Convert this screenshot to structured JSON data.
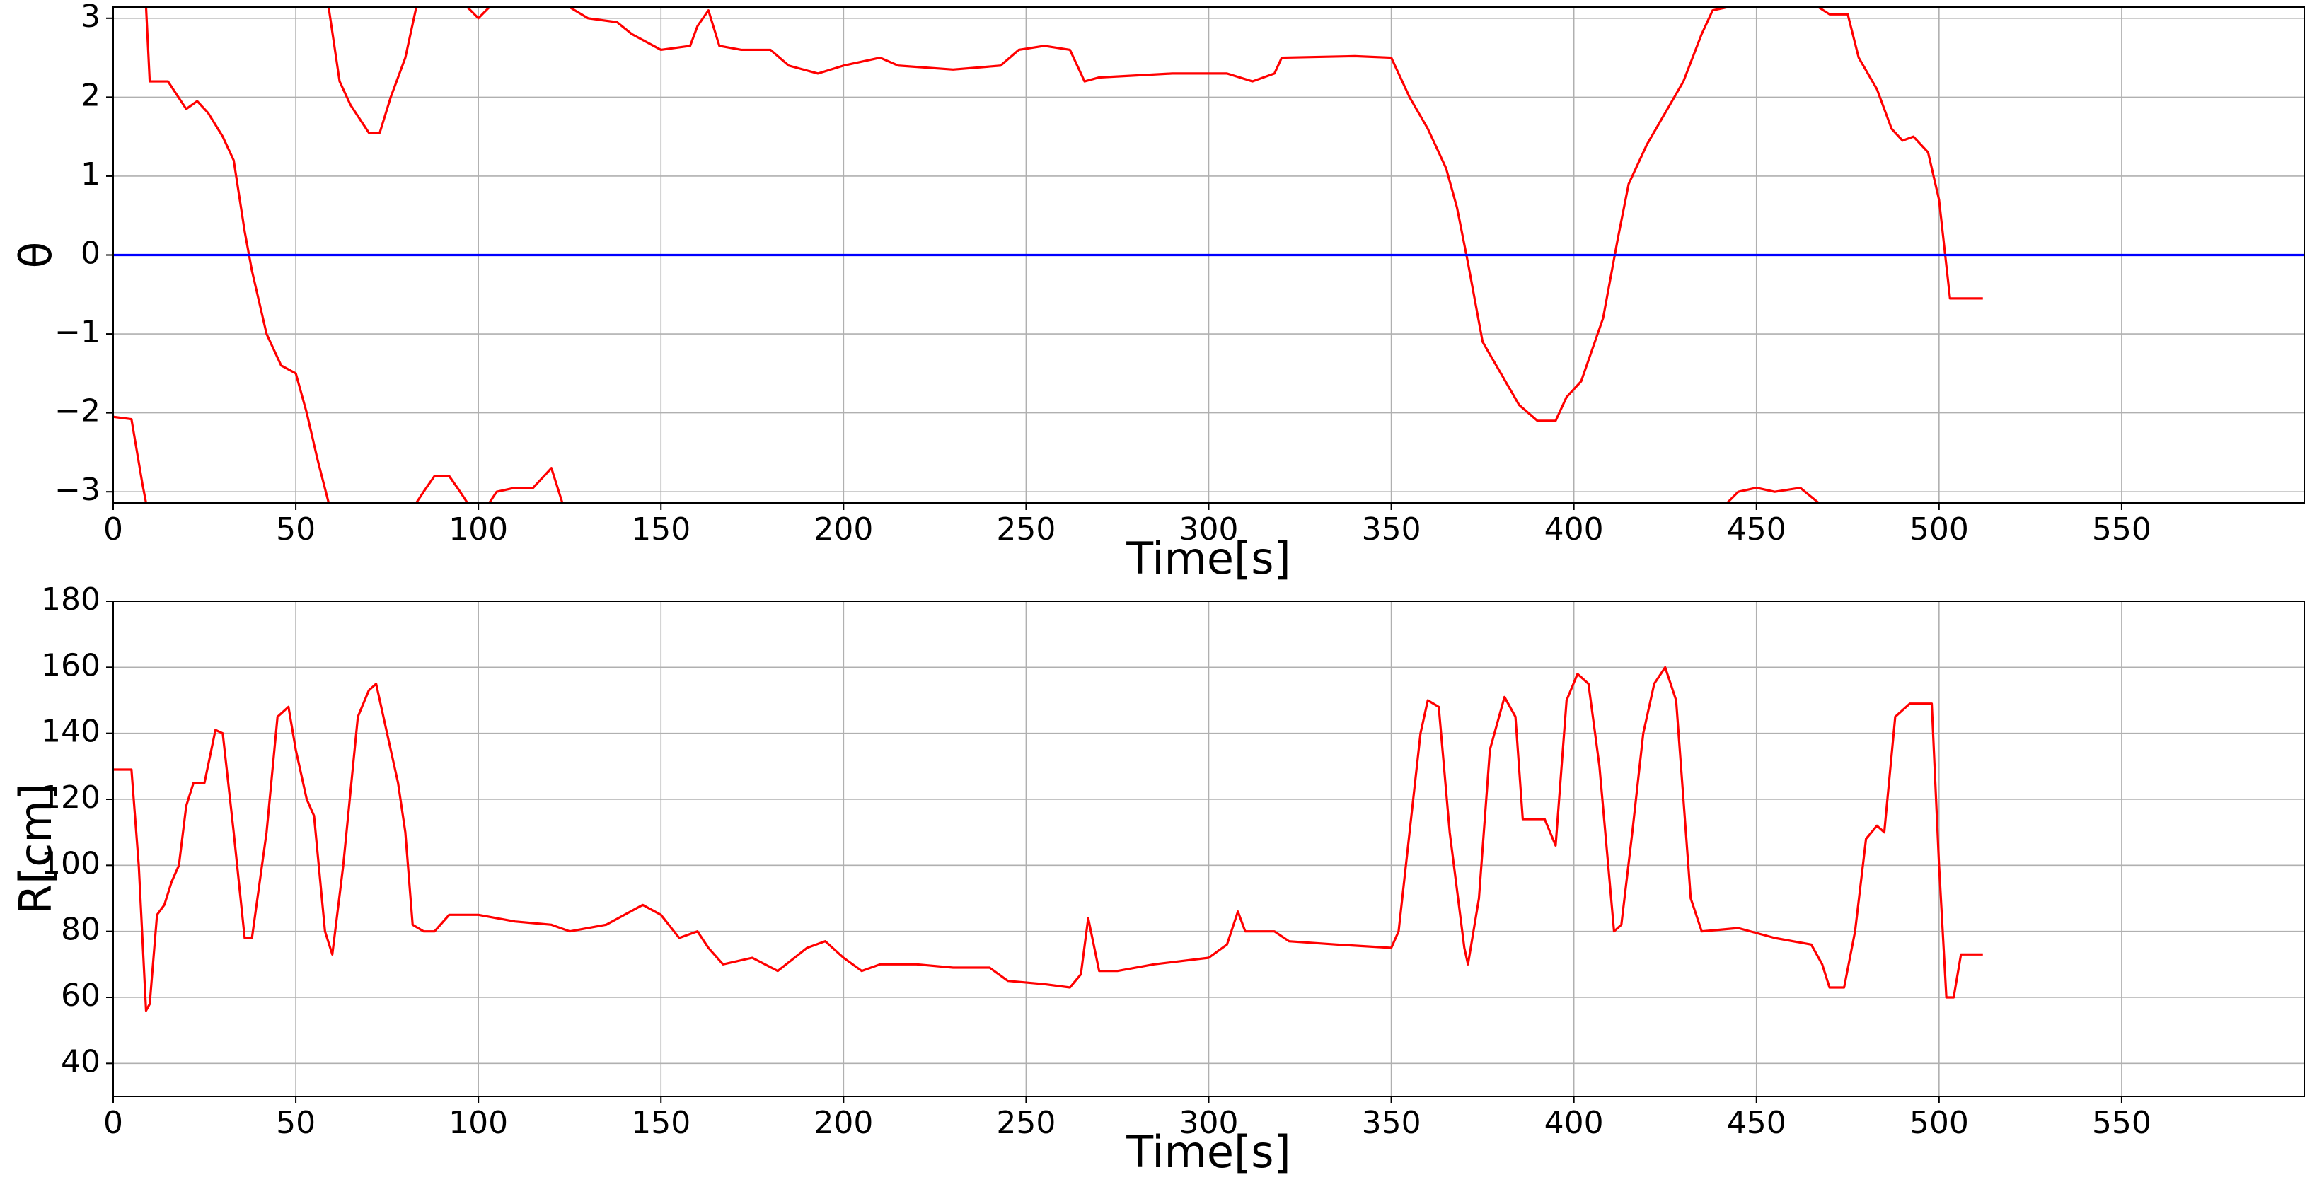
{
  "chart_data": [
    {
      "type": "line",
      "xlabel": "Time[s]",
      "ylabel": "θ",
      "xlim": [
        0,
        600
      ],
      "ylim": [
        -3.1416,
        3.1416
      ],
      "xticks": [
        0,
        50,
        100,
        150,
        200,
        250,
        300,
        350,
        400,
        450,
        500,
        550
      ],
      "yticks": [
        {
          "value": -3,
          "label": "−3"
        },
        {
          "value": -2,
          "label": "−2"
        },
        {
          "value": -1,
          "label": "−1"
        },
        0,
        1,
        2,
        3
      ],
      "grid": true,
      "series": [
        {
          "color": "#ff0000",
          "x": [
            0,
            5,
            8,
            9,
            9,
            9,
            10,
            15,
            20,
            23,
            26,
            30,
            33,
            36,
            38,
            42,
            46,
            50,
            53,
            56,
            59,
            59,
            59,
            62,
            65,
            70,
            73,
            76,
            80,
            83,
            83,
            83,
            85,
            88,
            92,
            95,
            97,
            97,
            97,
            100,
            103,
            103,
            103,
            105,
            110,
            115,
            120,
            123,
            123,
            123,
            125,
            130,
            138,
            142,
            150,
            158,
            160,
            163,
            166,
            172,
            180,
            185,
            193,
            200,
            210,
            215,
            230,
            243,
            248,
            255,
            262,
            266,
            270,
            290,
            305,
            312,
            318,
            320,
            340,
            350,
            355,
            360,
            365,
            368,
            371,
            375,
            380,
            385,
            390,
            395,
            398,
            402,
            408,
            412,
            415,
            420,
            425,
            430,
            435,
            438,
            442,
            442,
            442,
            445,
            450,
            455,
            462,
            467,
            467,
            467,
            470,
            475,
            478,
            483,
            487,
            490,
            493,
            497,
            500,
            503,
            512
          ],
          "values": [
            -2.05,
            -2.08,
            -2.9,
            -3.14,
            null,
            3.14,
            2.2,
            2.2,
            1.85,
            1.95,
            1.8,
            1.5,
            1.2,
            0.3,
            -0.2,
            -1,
            -1.4,
            -1.5,
            -2,
            -2.6,
            -3.14,
            null,
            3.14,
            2.2,
            1.9,
            1.55,
            1.55,
            2.0,
            2.5,
            3.14,
            null,
            -3.14,
            -3.0,
            -2.8,
            -2.8,
            -3.0,
            -3.14,
            null,
            3.14,
            3.0,
            3.14,
            null,
            -3.14,
            -3.0,
            -2.95,
            -2.95,
            -2.7,
            -3.14,
            null,
            3.14,
            3.14,
            3.0,
            2.95,
            2.8,
            2.6,
            2.65,
            2.9,
            3.1,
            2.65,
            2.6,
            2.6,
            2.4,
            2.3,
            2.4,
            2.5,
            2.4,
            2.35,
            2.4,
            2.6,
            2.65,
            2.6,
            2.2,
            2.25,
            2.3,
            2.3,
            2.2,
            2.3,
            2.5,
            2.52,
            2.5,
            2.0,
            1.6,
            1.1,
            0.6,
            -0.1,
            -1.1,
            -1.5,
            -1.9,
            -2.1,
            -2.1,
            -1.8,
            -1.6,
            -0.8,
            0.2,
            0.9,
            1.4,
            1.8,
            2.2,
            2.8,
            3.1,
            3.14,
            null,
            -3.14,
            -3.0,
            -2.95,
            -3.0,
            -2.95,
            -3.14,
            null,
            3.14,
            3.05,
            3.05,
            2.5,
            2.1,
            1.6,
            1.45,
            1.5,
            1.3,
            0.7,
            -0.55,
            -0.55
          ]
        },
        {
          "color": "#0000ff",
          "x": [
            0,
            600
          ],
          "values": [
            0,
            0
          ]
        }
      ]
    },
    {
      "type": "line",
      "xlabel": "Time[s]",
      "ylabel": "R[cm]",
      "xlim": [
        0,
        600
      ],
      "ylim": [
        30,
        180
      ],
      "xticks": [
        0,
        50,
        100,
        150,
        200,
        250,
        300,
        350,
        400,
        450,
        500,
        550
      ],
      "yticks": [
        40,
        60,
        80,
        100,
        120,
        140,
        160,
        180
      ],
      "grid": true,
      "series": [
        {
          "color": "#ff0000",
          "x": [
            0,
            5,
            7,
            9,
            10,
            12,
            14,
            16,
            18,
            20,
            22,
            25,
            28,
            30,
            33,
            36,
            38,
            42,
            45,
            48,
            50,
            53,
            55,
            58,
            60,
            63,
            67,
            70,
            72,
            75,
            78,
            80,
            82,
            85,
            88,
            92,
            100,
            110,
            120,
            125,
            135,
            145,
            150,
            155,
            160,
            163,
            167,
            175,
            182,
            190,
            195,
            200,
            205,
            210,
            220,
            230,
            240,
            245,
            255,
            262,
            265,
            267,
            270,
            275,
            285,
            300,
            305,
            308,
            310,
            318,
            322,
            335,
            350,
            352,
            355,
            358,
            360,
            363,
            366,
            370,
            371,
            374,
            377,
            381,
            384,
            386,
            392,
            395,
            398,
            401,
            404,
            407,
            411,
            413,
            416,
            419,
            422,
            425,
            428,
            430,
            432,
            435,
            445,
            455,
            465,
            468,
            470,
            474,
            477,
            480,
            483,
            485,
            488,
            492,
            498,
            500,
            502,
            504,
            506,
            512
          ],
          "values": [
            129,
            129,
            100,
            56,
            58,
            85,
            88,
            95,
            100,
            118,
            125,
            125,
            141,
            140,
            110,
            78,
            78,
            110,
            145,
            148,
            135,
            120,
            115,
            80,
            73,
            100,
            145,
            153,
            155,
            140,
            125,
            110,
            82,
            80,
            80,
            85,
            85,
            83,
            82,
            80,
            82,
            88,
            85,
            78,
            80,
            75,
            70,
            72,
            68,
            75,
            77,
            72,
            68,
            70,
            70,
            69,
            69,
            65,
            64,
            63,
            67,
            84,
            68,
            68,
            70,
            72,
            76,
            86,
            80,
            80,
            77,
            76,
            75,
            80,
            110,
            140,
            150,
            148,
            110,
            75,
            70,
            90,
            135,
            151,
            145,
            114,
            114,
            106,
            150,
            158,
            155,
            130,
            80,
            82,
            110,
            140,
            155,
            160,
            150,
            120,
            90,
            80,
            81,
            78,
            76,
            70,
            63,
            63,
            80,
            108,
            112,
            110,
            145,
            149,
            149,
            100,
            60,
            60,
            73,
            73
          ]
        }
      ]
    }
  ]
}
